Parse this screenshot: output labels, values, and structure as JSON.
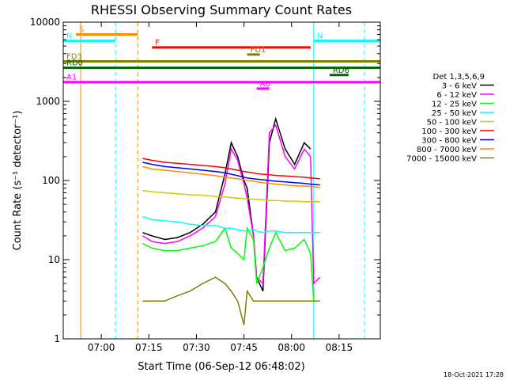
{
  "chart_data": {
    "type": "line",
    "title": "RHESSI Observing Summary Count Rates",
    "xlabel": "Start Time (06-Sep-12 06:48:02)",
    "ylabel": "Count Rate (s⁻¹ detector⁻¹)",
    "x_unit": "minutes after 06:48:02",
    "xlim": [
      0,
      100
    ],
    "ylim": [
      1,
      10000
    ],
    "y_scale": "log",
    "x_ticks": [
      {
        "label": "07:00",
        "x": 12
      },
      {
        "label": "07:15",
        "x": 27
      },
      {
        "label": "07:30",
        "x": 42
      },
      {
        "label": "07:45",
        "x": 57
      },
      {
        "label": "08:00",
        "x": 72
      },
      {
        "label": "08:15",
        "x": 87
      }
    ],
    "y_ticks": [
      {
        "label": "1",
        "y": 1
      },
      {
        "label": "10",
        "y": 10
      },
      {
        "label": "100",
        "y": 100
      },
      {
        "label": "1000",
        "y": 1000
      },
      {
        "label": "10000",
        "y": 10000
      }
    ],
    "legend_title": "Det 1,3,5,6,9",
    "legend_position": "right",
    "series": [
      {
        "name": "3 - 6 keV",
        "color": "#000000",
        "points": [
          [
            25,
            22
          ],
          [
            28,
            20
          ],
          [
            32,
            18
          ],
          [
            36,
            19
          ],
          [
            40,
            22
          ],
          [
            44,
            28
          ],
          [
            48,
            40
          ],
          [
            51,
            120
          ],
          [
            53,
            300
          ],
          [
            55,
            200
          ],
          [
            57,
            100
          ],
          [
            58,
            80
          ],
          [
            60,
            20
          ],
          [
            61,
            6
          ],
          [
            63,
            4
          ],
          [
            65,
            300
          ],
          [
            67,
            600
          ],
          [
            70,
            250
          ],
          [
            73,
            160
          ],
          [
            76,
            300
          ],
          [
            78,
            250
          ]
        ]
      },
      {
        "name": "6 - 12 keV",
        "color": "#ff00ff",
        "points": [
          [
            25,
            20
          ],
          [
            28,
            17
          ],
          [
            32,
            16
          ],
          [
            36,
            17
          ],
          [
            40,
            20
          ],
          [
            44,
            25
          ],
          [
            48,
            35
          ],
          [
            51,
            90
          ],
          [
            53,
            250
          ],
          [
            55,
            180
          ],
          [
            57,
            90
          ],
          [
            58,
            60
          ],
          [
            60,
            20
          ],
          [
            61,
            6
          ],
          [
            63,
            5
          ],
          [
            65,
            400
          ],
          [
            67,
            500
          ],
          [
            70,
            200
          ],
          [
            73,
            140
          ],
          [
            76,
            250
          ],
          [
            78,
            200
          ],
          [
            79,
            5
          ],
          [
            81,
            6
          ]
        ]
      },
      {
        "name": "12 - 25 keV",
        "color": "#00ff00",
        "points": [
          [
            25,
            16
          ],
          [
            28,
            14
          ],
          [
            32,
            13
          ],
          [
            36,
            13
          ],
          [
            40,
            14
          ],
          [
            44,
            15
          ],
          [
            48,
            17
          ],
          [
            51,
            25
          ],
          [
            53,
            14
          ],
          [
            55,
            12
          ],
          [
            57,
            10
          ],
          [
            58,
            25
          ],
          [
            60,
            18
          ],
          [
            61,
            5
          ],
          [
            63,
            8
          ],
          [
            65,
            14
          ],
          [
            67,
            22
          ],
          [
            70,
            13
          ],
          [
            73,
            14
          ],
          [
            76,
            18
          ],
          [
            78,
            12
          ],
          [
            79,
            3
          ],
          [
            81,
            3
          ]
        ]
      },
      {
        "name": "25 - 50 keV",
        "color": "#00ffff",
        "points": [
          [
            25,
            35
          ],
          [
            28,
            32
          ],
          [
            32,
            31
          ],
          [
            36,
            30
          ],
          [
            40,
            28
          ],
          [
            44,
            27
          ],
          [
            48,
            27
          ],
          [
            51,
            25
          ],
          [
            53,
            25
          ],
          [
            55,
            24
          ],
          [
            57,
            23
          ],
          [
            58,
            23
          ],
          [
            60,
            24
          ],
          [
            61,
            23
          ],
          [
            63,
            22
          ],
          [
            65,
            23
          ],
          [
            67,
            23
          ],
          [
            70,
            22
          ],
          [
            73,
            22
          ],
          [
            76,
            22
          ],
          [
            78,
            22
          ],
          [
            81,
            22
          ]
        ]
      },
      {
        "name": "50 - 100 keV",
        "color": "#cccc00",
        "points": [
          [
            25,
            75
          ],
          [
            28,
            72
          ],
          [
            32,
            70
          ],
          [
            36,
            68
          ],
          [
            40,
            66
          ],
          [
            44,
            65
          ],
          [
            48,
            63
          ],
          [
            51,
            62
          ],
          [
            53,
            61
          ],
          [
            55,
            60
          ],
          [
            57,
            59
          ],
          [
            58,
            59
          ],
          [
            60,
            58
          ],
          [
            61,
            58
          ],
          [
            63,
            57
          ],
          [
            65,
            56
          ],
          [
            67,
            56
          ],
          [
            70,
            55
          ],
          [
            73,
            55
          ],
          [
            76,
            54
          ],
          [
            78,
            54
          ],
          [
            81,
            54
          ]
        ]
      },
      {
        "name": "100 - 300 keV",
        "color": "#ff0000",
        "points": [
          [
            25,
            190
          ],
          [
            28,
            180
          ],
          [
            32,
            170
          ],
          [
            36,
            165
          ],
          [
            40,
            160
          ],
          [
            44,
            155
          ],
          [
            48,
            150
          ],
          [
            51,
            145
          ],
          [
            53,
            140
          ],
          [
            55,
            135
          ],
          [
            57,
            130
          ],
          [
            58,
            128
          ],
          [
            60,
            125
          ],
          [
            61,
            122
          ],
          [
            63,
            120
          ],
          [
            65,
            118
          ],
          [
            67,
            116
          ],
          [
            70,
            114
          ],
          [
            73,
            112
          ],
          [
            76,
            110
          ],
          [
            78,
            108
          ],
          [
            81,
            105
          ]
        ]
      },
      {
        "name": "300 - 800 keV",
        "color": "#0000ff",
        "points": [
          [
            25,
            170
          ],
          [
            28,
            160
          ],
          [
            32,
            150
          ],
          [
            36,
            145
          ],
          [
            40,
            140
          ],
          [
            44,
            135
          ],
          [
            48,
            130
          ],
          [
            51,
            125
          ],
          [
            53,
            120
          ],
          [
            55,
            115
          ],
          [
            57,
            110
          ],
          [
            58,
            108
          ],
          [
            60,
            105
          ],
          [
            61,
            104
          ],
          [
            63,
            102
          ],
          [
            65,
            100
          ],
          [
            67,
            98
          ],
          [
            70,
            96
          ],
          [
            73,
            94
          ],
          [
            76,
            92
          ],
          [
            78,
            90
          ],
          [
            81,
            88
          ]
        ]
      },
      {
        "name": "800 - 7000 keV",
        "color": "#ff8c00",
        "points": [
          [
            25,
            150
          ],
          [
            28,
            140
          ],
          [
            32,
            135
          ],
          [
            36,
            130
          ],
          [
            40,
            125
          ],
          [
            44,
            120
          ],
          [
            48,
            115
          ],
          [
            51,
            110
          ],
          [
            53,
            108
          ],
          [
            55,
            105
          ],
          [
            57,
            102
          ],
          [
            58,
            100
          ],
          [
            60,
            98
          ],
          [
            61,
            96
          ],
          [
            63,
            94
          ],
          [
            65,
            92
          ],
          [
            67,
            90
          ],
          [
            70,
            88
          ],
          [
            73,
            86
          ],
          [
            76,
            85
          ],
          [
            78,
            84
          ],
          [
            81,
            82
          ]
        ]
      },
      {
        "name": "7000 - 15000 keV",
        "color": "#808000",
        "points": [
          [
            25,
            3
          ],
          [
            28,
            3
          ],
          [
            32,
            3
          ],
          [
            36,
            3.5
          ],
          [
            40,
            4
          ],
          [
            44,
            5
          ],
          [
            48,
            6
          ],
          [
            51,
            5
          ],
          [
            53,
            4
          ],
          [
            55,
            3
          ],
          [
            57,
            1.5
          ],
          [
            58,
            4
          ],
          [
            60,
            3
          ],
          [
            61,
            3
          ],
          [
            63,
            3
          ],
          [
            65,
            3
          ],
          [
            67,
            3
          ],
          [
            70,
            3
          ],
          [
            73,
            3
          ],
          [
            76,
            3
          ],
          [
            78,
            3
          ],
          [
            81,
            3
          ]
        ]
      }
    ],
    "state_bars": [
      {
        "label": "S",
        "color": "#ff8c00",
        "start": 4,
        "end": 23.5,
        "y": 7000
      },
      {
        "label": "N",
        "color": "#00ffff",
        "start": 0,
        "end": 16.5,
        "y": 5800
      },
      {
        "label": "N",
        "color": "#00ffff",
        "start": 79,
        "end": 100,
        "y": 5800
      },
      {
        "label": "F",
        "color": "#ff0000",
        "start": 28,
        "end": 78,
        "y": 4800
      },
      {
        "label": "FD1",
        "color": "#808000",
        "start": 58,
        "end": 62,
        "y": 3900
      },
      {
        "label": "FD3",
        "color": "#808000",
        "start": 0,
        "end": 100,
        "y": 3200
      },
      {
        "label": "RD0",
        "color": "#006400",
        "start": 0,
        "end": 100,
        "y": 2650
      },
      {
        "label": "RD6",
        "color": "#006400",
        "start": 84,
        "end": 90,
        "y": 2150
      },
      {
        "label": "A1",
        "color": "#ff00ff",
        "start": 0,
        "end": 100,
        "y": 1750
      },
      {
        "label": "A0",
        "color": "#ff00ff",
        "start": 61,
        "end": 65,
        "y": 1450
      }
    ],
    "vertical_lines": [
      {
        "x": 5.5,
        "color": "#ff8c00",
        "style": "solid"
      },
      {
        "x": 16.5,
        "color": "#00ffff",
        "style": "dashed"
      },
      {
        "x": 23.5,
        "color": "#ff8c00",
        "style": "dashed"
      },
      {
        "x": 79,
        "color": "#00ffff",
        "style": "solid"
      },
      {
        "x": 95,
        "color": "#00ffff",
        "style": "dashed"
      }
    ],
    "footer": "18-Oct-2021 17:28"
  }
}
